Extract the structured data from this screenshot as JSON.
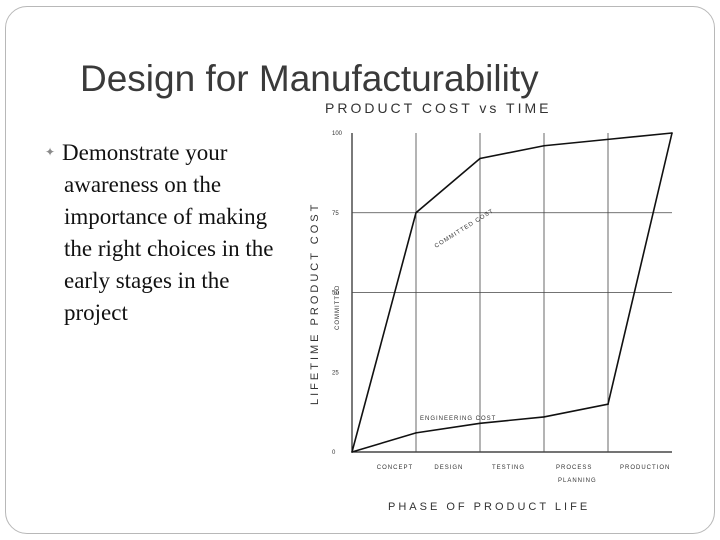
{
  "slide": {
    "title": "Design for Manufacturability",
    "bullet": "Demonstrate your awareness on the importance of making the right choices in the early stages in the project"
  },
  "chart_data": {
    "type": "line",
    "title": "PRODUCT   COST   vs   TIME",
    "ylabel": "LIFETIME PRODUCT COST",
    "ylabel2": "COMMITTED",
    "xlabel": "PHASE OF PRODUCT LIFE",
    "y_ticks": [
      "100",
      "75",
      "50",
      "25",
      "0"
    ],
    "x_ticks": [
      "CONCEPT",
      "DESIGN",
      "TESTING",
      "PROCESS PLANNING",
      "PRODUCTION"
    ],
    "ylim": [
      0,
      100
    ],
    "xlim": [
      0,
      5
    ],
    "series": [
      {
        "name": "COMMITTED COST",
        "color": "#111111",
        "points": [
          [
            0,
            0
          ],
          [
            1,
            75
          ],
          [
            2,
            92
          ],
          [
            3,
            96
          ],
          [
            4,
            98
          ],
          [
            5,
            100
          ]
        ]
      },
      {
        "name": "ENGINEERING COST",
        "color": "#111111",
        "points": [
          [
            0,
            0
          ],
          [
            1,
            6
          ],
          [
            2,
            9
          ],
          [
            3,
            11
          ],
          [
            4,
            15
          ],
          [
            5,
            100
          ]
        ]
      }
    ]
  }
}
